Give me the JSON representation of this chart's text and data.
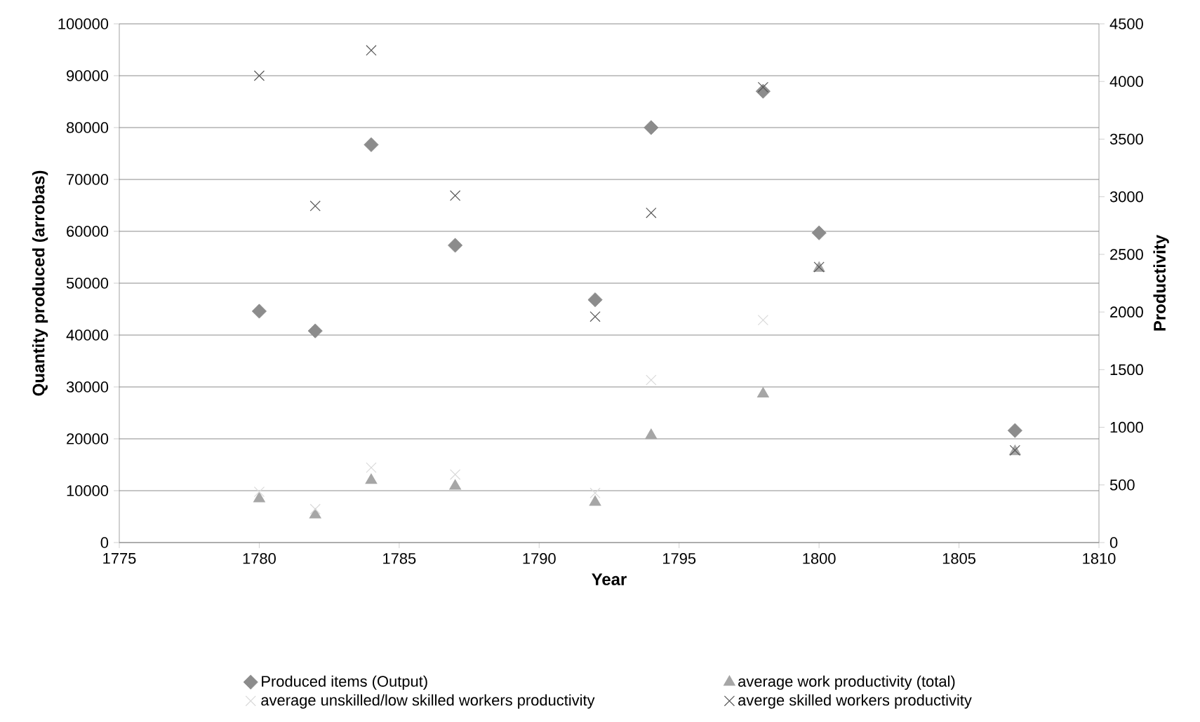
{
  "chart_data": {
    "type": "scatter",
    "xlabel": "Year",
    "ylabel": "Quantity produced (arrobas)",
    "y2label": "Productivity",
    "xlim": [
      1775,
      1810
    ],
    "xticks": [
      1775,
      1780,
      1785,
      1790,
      1795,
      1800,
      1805,
      1810
    ],
    "ylim": [
      0,
      100000
    ],
    "yticks": [
      0,
      10000,
      20000,
      30000,
      40000,
      50000,
      60000,
      70000,
      80000,
      90000,
      100000
    ],
    "y2lim": [
      0,
      4500
    ],
    "y2ticks": [
      0,
      500,
      1000,
      1500,
      2000,
      2500,
      3000,
      3500,
      4000,
      4500
    ],
    "grid": "y",
    "legend": "bottom",
    "x": [
      1780,
      1782,
      1784,
      1787,
      1792,
      1794,
      1798,
      1800,
      1807
    ],
    "series": [
      {
        "name": "Produced items (Output)",
        "color": "#8c8c8c",
        "marker": "diamond",
        "values": [
          44600,
          40800,
          76700,
          57300,
          46800,
          80000,
          87000,
          59700,
          21600
        ]
      },
      {
        "name": "average work productivity (total)",
        "color": "#a6a6a6",
        "marker": "triangle",
        "axis": "y2",
        "values": [
          380,
          240,
          540,
          490,
          350,
          930,
          1290,
          2380,
          790
        ]
      },
      {
        "name": "average unskilled/low skilled  workers productivity",
        "color": "#d9d9d9",
        "marker": "cross",
        "axis": "y2",
        "values": [
          440,
          290,
          650,
          590,
          430,
          1410,
          1930,
          null,
          null
        ]
      },
      {
        "name": "averge skilled workers productivity",
        "color": "#595959",
        "marker": "cross",
        "axis": "y2",
        "values": [
          4050,
          2920,
          4270,
          3010,
          1960,
          2860,
          3950,
          2390,
          800
        ]
      }
    ]
  }
}
